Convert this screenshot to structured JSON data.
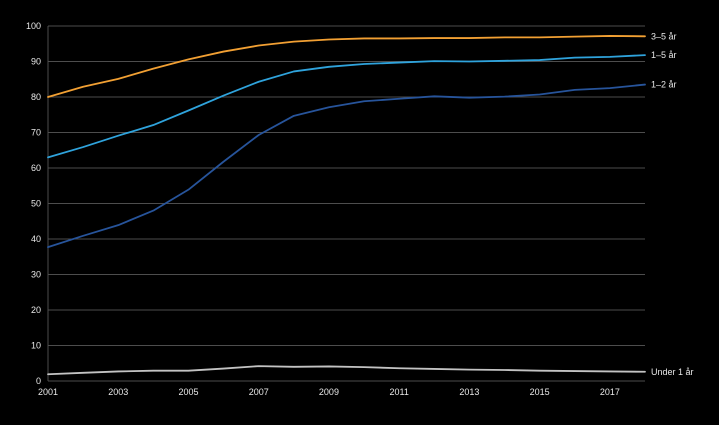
{
  "chart_data": {
    "type": "line",
    "x": [
      2001,
      2002,
      2003,
      2004,
      2005,
      2006,
      2007,
      2008,
      2009,
      2010,
      2011,
      2012,
      2013,
      2014,
      2015,
      2016,
      2017,
      2018
    ],
    "x_tick_labels": [
      "2001",
      "2003",
      "2005",
      "2007",
      "2009",
      "2011",
      "2013",
      "2015",
      "2017"
    ],
    "y_ticks": [
      0,
      10,
      20,
      30,
      40,
      50,
      60,
      70,
      80,
      90,
      100
    ],
    "ylim": [
      0,
      100
    ],
    "grid": true,
    "legend_position": "right-of-line-ends",
    "background_color": "#000000",
    "grid_color": "#4d4d4d",
    "text_color": "#e8e8e8",
    "series": [
      {
        "id": "3-5-ar",
        "name": "3–5 år",
        "color": "#f2a033",
        "values": [
          80.0,
          82.9,
          85.1,
          88.0,
          90.6,
          92.8,
          94.5,
          95.6,
          96.2,
          96.5,
          96.5,
          96.6,
          96.6,
          96.8,
          96.8,
          97.0,
          97.2,
          97.1
        ]
      },
      {
        "id": "1-5-ar",
        "name": "1–5 år",
        "color": "#2fa3dc",
        "values": [
          63.0,
          65.9,
          69.1,
          72.1,
          76.2,
          80.4,
          84.3,
          87.2,
          88.5,
          89.3,
          89.7,
          90.1,
          90.0,
          90.2,
          90.4,
          91.1,
          91.3,
          91.8
        ]
      },
      {
        "id": "1-2-ar",
        "name": "1–2 år",
        "color": "#27549b",
        "values": [
          37.7,
          40.9,
          43.9,
          48.0,
          53.9,
          61.8,
          69.3,
          74.7,
          77.1,
          78.8,
          79.5,
          80.2,
          79.8,
          80.1,
          80.7,
          82.0,
          82.5,
          83.5
        ]
      },
      {
        "id": "under-1-ar",
        "name": "Under 1 år",
        "color": "#c3c3c3",
        "values": [
          1.9,
          2.3,
          2.7,
          2.9,
          2.9,
          3.5,
          4.2,
          4.0,
          4.1,
          3.9,
          3.6,
          3.4,
          3.2,
          3.1,
          2.9,
          2.8,
          2.7,
          2.6
        ]
      }
    ]
  }
}
